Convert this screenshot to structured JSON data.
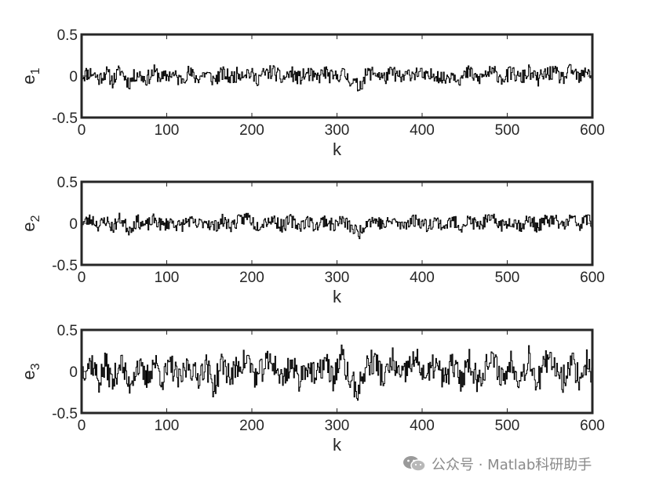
{
  "watermark": {
    "text": "公众号 · Matlab科研助手",
    "icon": "wechat-icon"
  },
  "chart_data": [
    {
      "type": "line",
      "ylabel_base": "e",
      "ylabel_sub": "1",
      "xlabel": "k",
      "xlim": [
        0,
        600
      ],
      "ylim": [
        -0.5,
        0.5
      ],
      "xticks": [
        0,
        100,
        200,
        300,
        400,
        500,
        600
      ],
      "yticks": [
        -0.5,
        0,
        0.5
      ],
      "xtick_labels": [
        "0",
        "100",
        "200",
        "300",
        "400",
        "500",
        "600"
      ],
      "ytick_labels": [
        "-0.5",
        "0",
        "0.5"
      ],
      "step": true,
      "color": "#000000",
      "grid": false,
      "n_points": 600,
      "amplitude": 0.09,
      "seed": 11,
      "x": [
        0,
        5,
        12,
        20,
        28,
        36,
        45,
        55,
        65,
        75,
        85,
        95,
        105,
        115,
        125,
        135,
        145,
        155,
        165,
        175,
        185,
        195,
        205,
        215,
        225,
        235,
        245,
        255,
        265,
        275,
        285,
        295,
        305,
        315,
        325,
        335,
        345,
        355,
        365,
        375,
        385,
        395,
        405,
        415,
        425,
        435,
        445,
        455,
        465,
        475,
        485,
        495,
        505,
        515,
        525,
        535,
        545,
        555,
        565,
        575,
        585,
        595,
        600
      ],
      "y": [
        0.0,
        0.05,
        0.07,
        -0.06,
        0.08,
        -0.1,
        0.12,
        -0.14,
        0.06,
        -0.07,
        0.08,
        -0.05,
        0.05,
        -0.08,
        0.07,
        -0.05,
        0.06,
        -0.08,
        0.05,
        -0.04,
        0.06,
        0.08,
        -0.06,
        0.05,
        0.09,
        -0.07,
        0.06,
        -0.05,
        0.05,
        -0.06,
        0.08,
        -0.05,
        0.06,
        -0.07,
        -0.22,
        0.05,
        0.07,
        -0.05,
        0.08,
        -0.06,
        0.05,
        0.07,
        -0.05,
        0.06,
        -0.07,
        0.05,
        -0.06,
        0.08,
        -0.07,
        0.05,
        0.06,
        -0.05,
        0.07,
        -0.06,
        0.08,
        -0.07,
        0.05,
        0.06,
        -0.05,
        0.12,
        -0.06,
        0.15,
        -0.1
      ]
    },
    {
      "type": "line",
      "ylabel_base": "e",
      "ylabel_sub": "2",
      "xlabel": "k",
      "xlim": [
        0,
        600
      ],
      "ylim": [
        -0.5,
        0.5
      ],
      "xticks": [
        0,
        100,
        200,
        300,
        400,
        500,
        600
      ],
      "yticks": [
        -0.5,
        0,
        0.5
      ],
      "xtick_labels": [
        "0",
        "100",
        "200",
        "300",
        "400",
        "500",
        "600"
      ],
      "ytick_labels": [
        "-0.5",
        "0",
        "0.5"
      ],
      "step": true,
      "color": "#000000",
      "grid": false,
      "n_points": 600,
      "amplitude": 0.08,
      "seed": 23,
      "x": [
        0,
        5,
        12,
        20,
        28,
        36,
        45,
        55,
        65,
        75,
        85,
        95,
        105,
        115,
        125,
        135,
        145,
        155,
        165,
        175,
        185,
        195,
        205,
        215,
        225,
        235,
        245,
        255,
        265,
        275,
        285,
        295,
        305,
        315,
        325,
        335,
        345,
        355,
        365,
        375,
        385,
        395,
        405,
        415,
        425,
        435,
        445,
        455,
        465,
        475,
        485,
        495,
        505,
        515,
        525,
        535,
        545,
        555,
        565,
        575,
        585,
        595,
        600
      ],
      "y": [
        0.0,
        0.04,
        0.08,
        -0.05,
        0.07,
        -0.09,
        0.1,
        -0.12,
        0.05,
        -0.06,
        0.07,
        -0.05,
        0.04,
        -0.07,
        0.06,
        -0.05,
        0.06,
        -0.07,
        0.05,
        -0.04,
        0.05,
        0.14,
        -0.05,
        0.05,
        0.08,
        -0.06,
        0.06,
        -0.05,
        0.05,
        -0.06,
        0.07,
        -0.05,
        0.06,
        -0.06,
        -0.2,
        0.05,
        0.06,
        -0.05,
        0.07,
        -0.06,
        0.05,
        0.06,
        -0.05,
        0.06,
        -0.06,
        0.05,
        -0.06,
        0.07,
        -0.06,
        0.05,
        0.06,
        -0.05,
        0.06,
        -0.05,
        0.07,
        -0.06,
        0.05,
        0.06,
        -0.05,
        0.1,
        -0.05,
        0.13,
        -0.09
      ]
    },
    {
      "type": "line",
      "ylabel_base": "e",
      "ylabel_sub": "3",
      "xlabel": "k",
      "xlim": [
        0,
        600
      ],
      "ylim": [
        -0.5,
        0.5
      ],
      "xticks": [
        0,
        100,
        200,
        300,
        400,
        500,
        600
      ],
      "yticks": [
        -0.5,
        0,
        0.5
      ],
      "xtick_labels": [
        "0",
        "100",
        "200",
        "300",
        "400",
        "500",
        "600"
      ],
      "ytick_labels": [
        "-0.5",
        "0",
        "0.5"
      ],
      "step": true,
      "color": "#000000",
      "grid": false,
      "n_points": 600,
      "amplitude": 0.16,
      "seed": 37,
      "x": [
        0,
        5,
        12,
        20,
        28,
        36,
        45,
        55,
        65,
        75,
        85,
        95,
        105,
        115,
        125,
        135,
        145,
        155,
        165,
        175,
        185,
        195,
        205,
        215,
        225,
        235,
        245,
        255,
        265,
        275,
        285,
        295,
        305,
        315,
        325,
        335,
        345,
        355,
        365,
        375,
        385,
        395,
        405,
        415,
        425,
        435,
        445,
        455,
        465,
        475,
        485,
        495,
        505,
        515,
        525,
        535,
        545,
        555,
        565,
        575,
        585,
        595,
        600
      ],
      "y": [
        0.0,
        0.12,
        0.18,
        -0.2,
        0.15,
        -0.25,
        0.22,
        -0.28,
        0.14,
        -0.18,
        0.2,
        -0.15,
        0.12,
        -0.22,
        0.18,
        -0.14,
        0.16,
        -0.3,
        0.18,
        -0.12,
        0.15,
        0.24,
        -0.16,
        0.14,
        0.2,
        -0.18,
        0.16,
        -0.14,
        0.15,
        -0.17,
        0.22,
        -0.15,
        0.3,
        -0.2,
        -0.38,
        0.15,
        0.2,
        -0.16,
        0.22,
        -0.18,
        0.15,
        0.2,
        -0.15,
        0.18,
        -0.2,
        0.15,
        -0.18,
        0.24,
        -0.2,
        0.15,
        0.18,
        -0.16,
        0.22,
        -0.18,
        0.32,
        -0.22,
        0.16,
        0.18,
        -0.16,
        0.24,
        -0.18,
        0.28,
        -0.25
      ]
    }
  ]
}
